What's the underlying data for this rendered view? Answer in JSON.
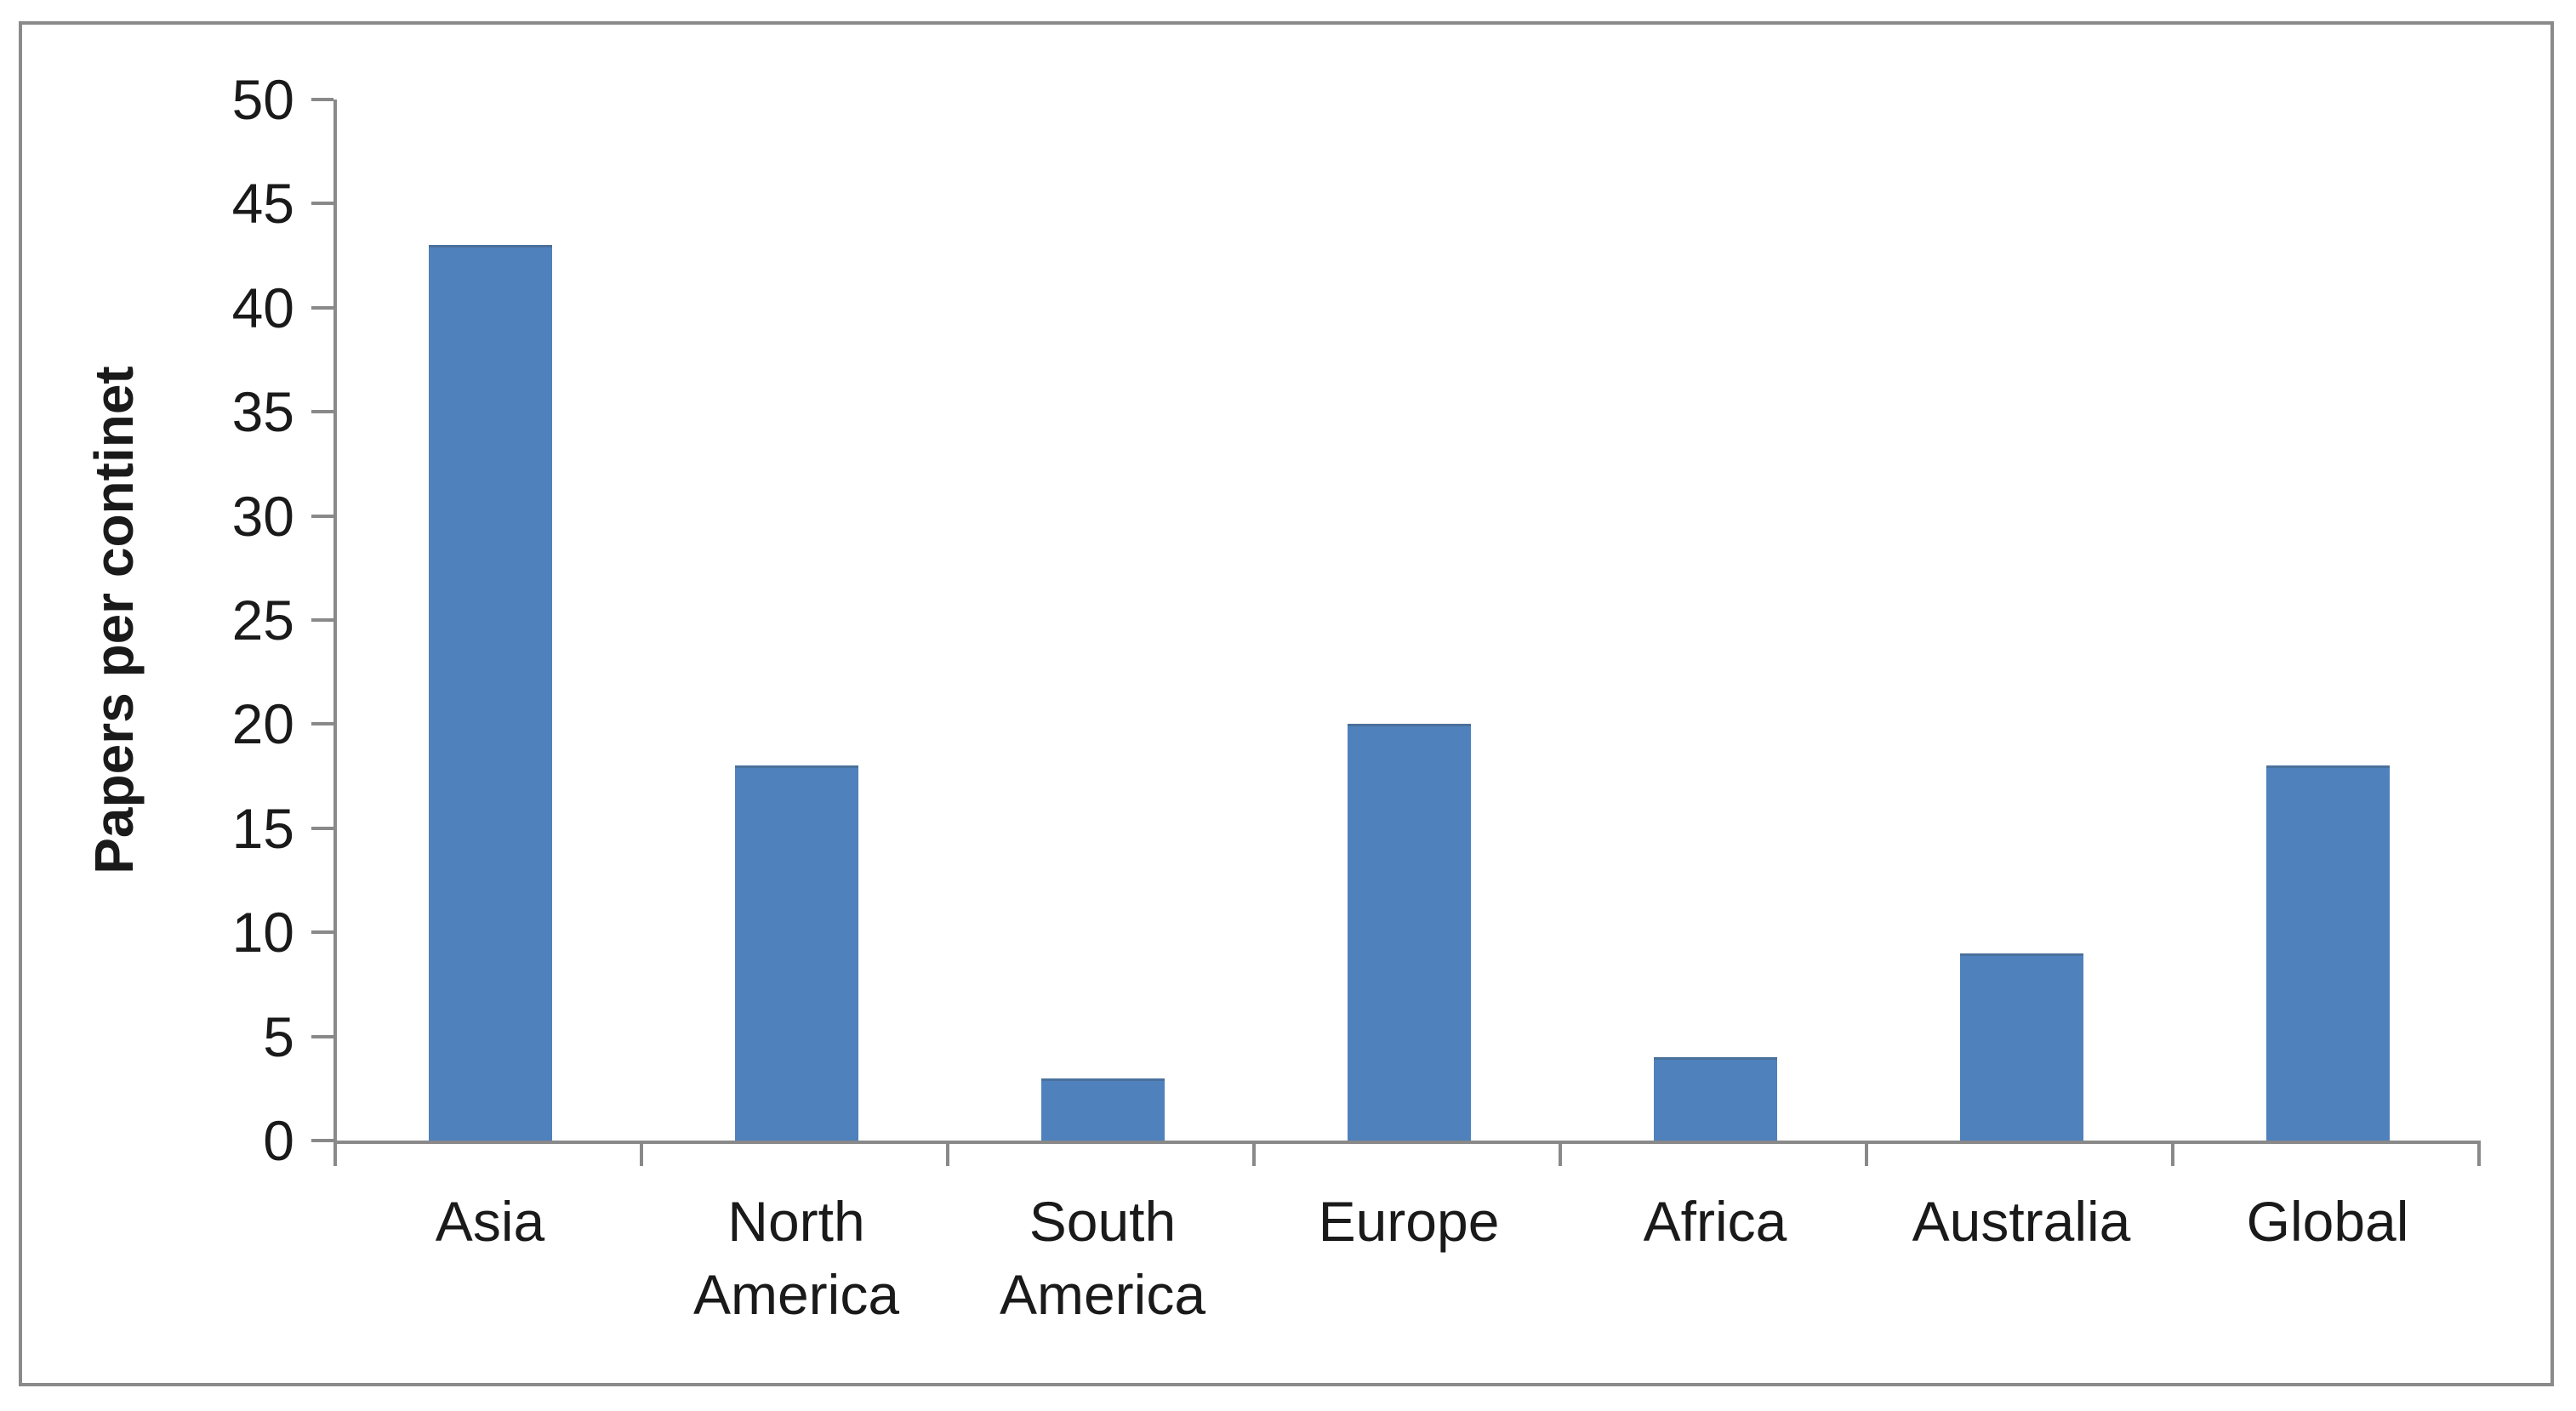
{
  "chart_data": {
    "type": "bar",
    "categories": [
      "Asia",
      "North America",
      "South America",
      "Europe",
      "Africa",
      "Australia",
      "Global"
    ],
    "values": [
      43,
      18,
      3,
      20,
      4,
      9,
      18
    ],
    "title": "",
    "xlabel": "",
    "ylabel": "Papers per continet",
    "ylim": [
      0,
      50
    ],
    "y_ticks": [
      0,
      5,
      10,
      15,
      20,
      25,
      30,
      35,
      40,
      45,
      50
    ],
    "grid": false,
    "legend": "none",
    "bar_color": "#4F81BD",
    "axis_color": "#898989",
    "text_color": "#1a1a1a",
    "frame_border_color": "#8a8a8a",
    "background_color": "#ffffff"
  }
}
